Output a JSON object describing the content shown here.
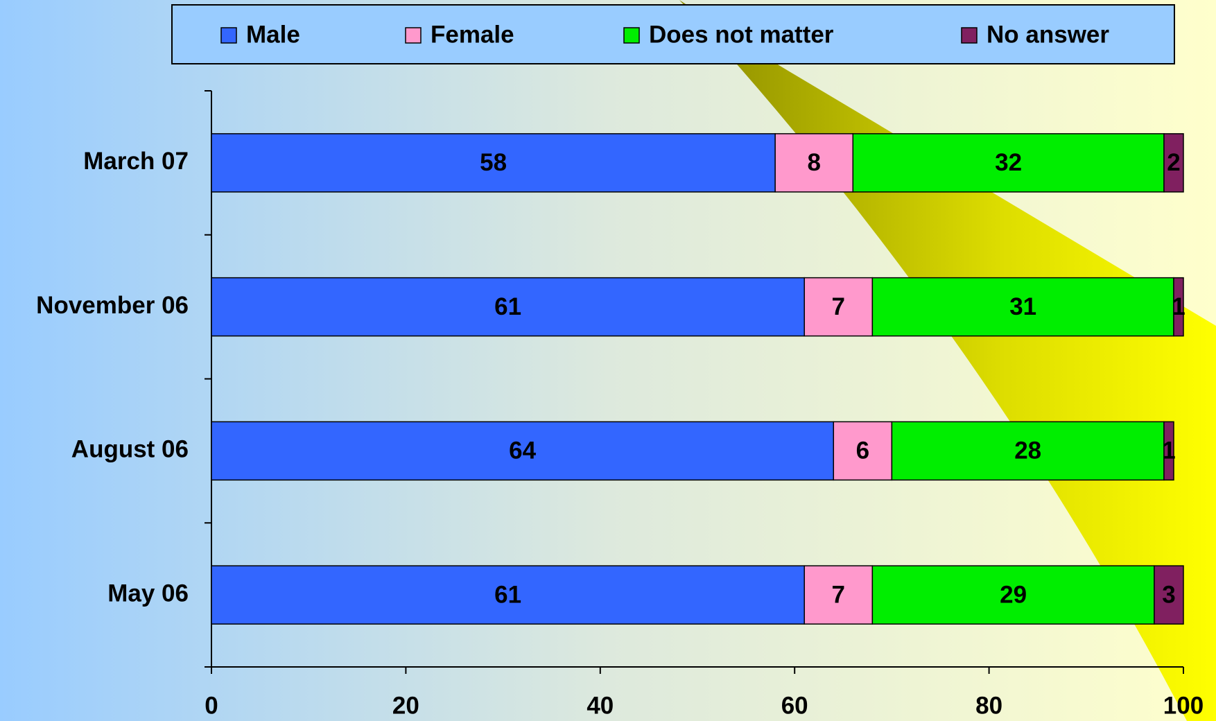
{
  "chart_data": {
    "type": "stacked-bar-horizontal",
    "categories": [
      "March 07",
      "November 06",
      "August 06",
      "May 06"
    ],
    "series": [
      {
        "name": "Male",
        "color": "#3366ff",
        "values": [
          58,
          61,
          64,
          61
        ]
      },
      {
        "name": "Female",
        "color": "#ff99cc",
        "values": [
          8,
          7,
          6,
          7
        ]
      },
      {
        "name": "Does not matter",
        "color": "#00ee00",
        "values": [
          32,
          31,
          28,
          29
        ]
      },
      {
        "name": "No answer",
        "color": "#802060",
        "values": [
          2,
          1,
          1,
          3
        ]
      }
    ],
    "xlim": [
      0,
      100
    ],
    "xticks": [
      0,
      20,
      40,
      60,
      80,
      100
    ],
    "legend": "top"
  }
}
